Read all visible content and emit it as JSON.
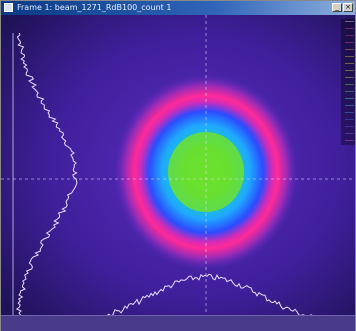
{
  "window": {
    "title": "Frame 1: beam_1271_RdB100_count 1"
  },
  "colors": {
    "background": "#3a1a8a",
    "crosshair": "#d8d0ff",
    "profile": "#e8e0ff",
    "ring": "#ff2fa0",
    "blue": "#2a5cff",
    "cyan": "#1ec8ff",
    "core": "#7ef23a"
  },
  "scale": {
    "labels": [
      "",
      "",
      "",
      "",
      "",
      "",
      "",
      "",
      "",
      "",
      "",
      "",
      "",
      "",
      "",
      "",
      "",
      ""
    ],
    "colors": [
      "#ffffff",
      "#ff4da6",
      "#ff3ca0",
      "#ff5c9e",
      "#ffad4d",
      "#ffd24d",
      "#ffe34d",
      "#e8ff4d",
      "#b8ff4d",
      "#7fff4d",
      "#4dff80",
      "#4dffd0",
      "#4dd8ff",
      "#4da8ff",
      "#4d78ff",
      "#7a5cff",
      "#b05cff",
      "#ff5cf0"
    ]
  }
}
